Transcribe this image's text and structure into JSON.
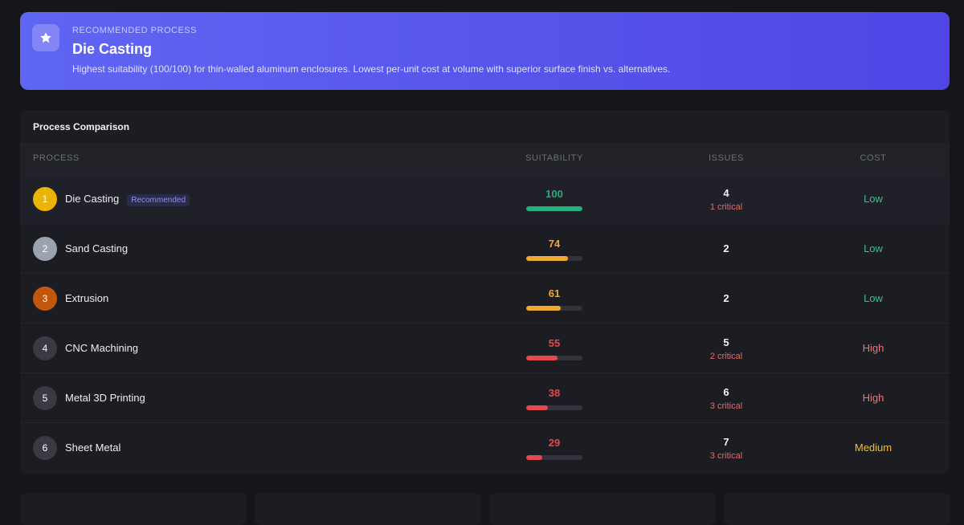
{
  "banner": {
    "label": "RECOMMENDED PROCESS",
    "title": "Die Casting",
    "description": "Highest suitability (100/100) for thin-walled aluminum enclosures. Lowest per-unit cost at volume with superior surface finish vs. alternatives."
  },
  "comparison": {
    "title": "Process Comparison",
    "columns": [
      "PROCESS",
      "SUITABILITY",
      "ISSUES",
      "COST"
    ],
    "rows": [
      {
        "rank": 1,
        "rank_color": "#eab308",
        "name": "Die Casting",
        "badge": "Recommended",
        "suitability": 100,
        "bar_color": "#22b07d",
        "issues": 4,
        "critical": "1 critical",
        "cost": "Low",
        "cost_color": "#34c28f"
      },
      {
        "rank": 2,
        "rank_color": "#9ca3af",
        "name": "Sand Casting",
        "suitability": 74,
        "bar_color": "#f0a830",
        "issues": 2,
        "critical": null,
        "cost": "Low",
        "cost_color": "#34c28f"
      },
      {
        "rank": 3,
        "rank_color": "#c2570c",
        "name": "Extrusion",
        "suitability": 61,
        "bar_color": "#f0a830",
        "issues": 2,
        "critical": null,
        "cost": "Low",
        "cost_color": "#34c28f"
      },
      {
        "rank": 4,
        "rank_color": "#3a3b42",
        "name": "CNC Machining",
        "suitability": 55,
        "bar_color": "#e5484d",
        "issues": 5,
        "critical": "2 critical",
        "cost": "High",
        "cost_color": "#f87171"
      },
      {
        "rank": 5,
        "rank_color": "#3a3b42",
        "name": "Metal 3D Printing",
        "suitability": 38,
        "bar_color": "#e5484d",
        "issues": 6,
        "critical": "3 critical",
        "cost": "High",
        "cost_color": "#f87171"
      },
      {
        "rank": 6,
        "rank_color": "#3a3b42",
        "name": "Sheet Metal",
        "suitability": 29,
        "bar_color": "#e5484d",
        "issues": 7,
        "critical": "3 critical",
        "cost": "Medium",
        "cost_color": "#fbbf24"
      }
    ]
  }
}
